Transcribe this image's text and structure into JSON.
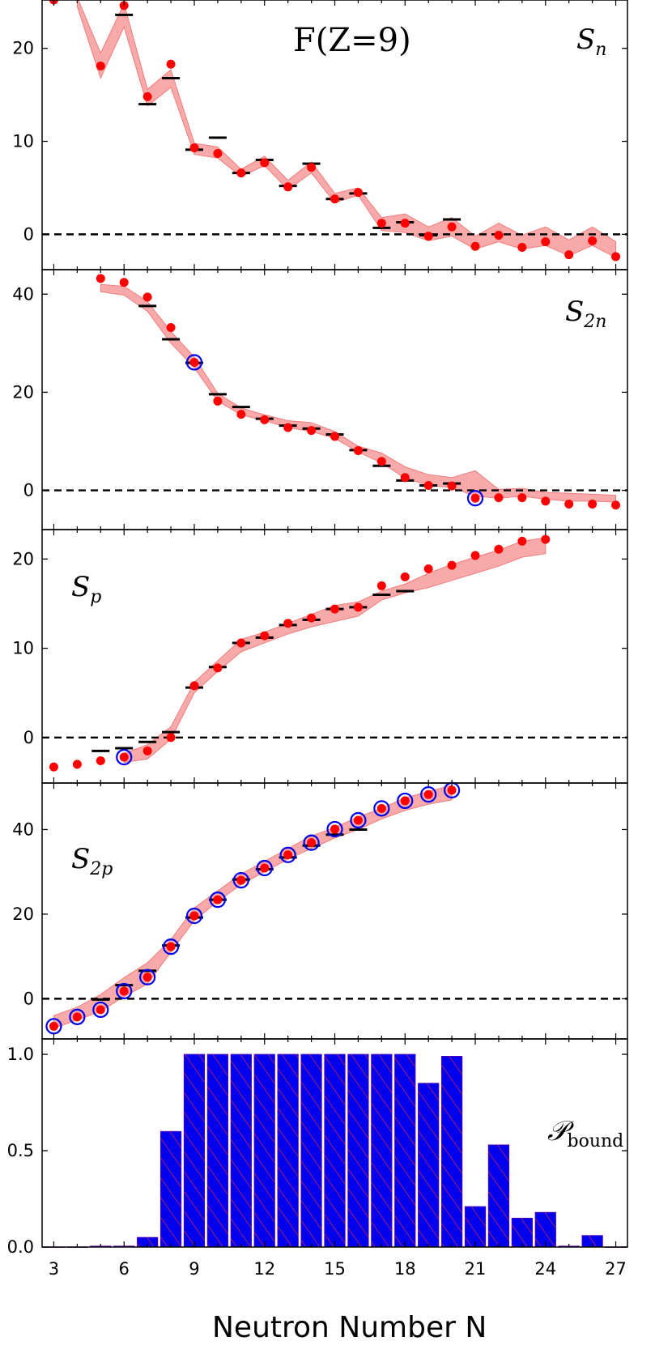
{
  "chart_data": {
    "type": "multi-panel scatter / band / bar",
    "title": "F(Z=9)",
    "xlabel": "Neutron Number N",
    "xlim": [
      2.5,
      27.5
    ],
    "xticks": [
      3,
      6,
      9,
      12,
      15,
      18,
      21,
      24,
      27
    ],
    "panels": [
      {
        "name": "Sn",
        "label": "S_n",
        "ylim": [
          -3.8,
          25.2
        ],
        "yticks": [
          0,
          10,
          20
        ],
        "band": {
          "x": [
            4,
            5,
            6,
            7,
            8,
            9,
            10,
            11,
            12,
            13,
            14,
            15,
            16,
            17,
            18,
            19,
            20,
            21,
            22,
            23,
            24,
            25,
            26,
            27
          ],
          "lo": [
            24.5,
            16.8,
            22.3,
            13.8,
            15.8,
            8.6,
            8.2,
            6.2,
            7.4,
            4.8,
            6.6,
            3.4,
            4.2,
            0.4,
            0.2,
            -0.7,
            -0.2,
            -1.6,
            -0.8,
            -1.6,
            -1.2,
            -2.3,
            -1.2,
            -2.5
          ],
          "hi": [
            25.5,
            19.5,
            24.8,
            15.6,
            17.7,
            9.8,
            9.4,
            7.0,
            8.4,
            5.8,
            7.8,
            4.4,
            5.0,
            1.8,
            2.2,
            0.8,
            1.8,
            -0.2,
            1.2,
            -0.1,
            0.8,
            -0.6,
            0.8,
            -0.8
          ]
        },
        "predicted": {
          "x": [
            3,
            5,
            6,
            7,
            8,
            9,
            10,
            11,
            12,
            13,
            14,
            15,
            16,
            17,
            18,
            19,
            20,
            21,
            22,
            23,
            24,
            25,
            26,
            27
          ],
          "y": [
            25.2,
            18.1,
            24.6,
            14.8,
            18.3,
            9.3,
            8.7,
            6.6,
            7.7,
            5.1,
            7.2,
            3.8,
            4.5,
            1.2,
            1.2,
            -0.2,
            0.8,
            -1.3,
            -0.1,
            -1.4,
            -0.8,
            -2.2,
            -0.7,
            -2.4
          ]
        },
        "experiment": {
          "x": [
            6,
            7,
            8,
            9,
            10,
            11,
            12,
            13,
            14,
            15,
            16,
            17,
            18,
            19,
            20
          ],
          "y": [
            23.6,
            14.0,
            16.8,
            9.1,
            10.4,
            6.6,
            8.0,
            5.2,
            7.6,
            3.8,
            4.4,
            0.7,
            1.3,
            -0.1,
            1.6
          ]
        },
        "circled": {
          "x": [],
          "y": []
        }
      },
      {
        "name": "S2n",
        "label": "S_2n",
        "ylim": [
          -8,
          45
        ],
        "yticks": [
          0,
          20,
          40
        ],
        "band": {
          "x": [
            5,
            6,
            7,
            8,
            9,
            10,
            11,
            12,
            13,
            14,
            15,
            16,
            17,
            18,
            19,
            20,
            21,
            22,
            23,
            24,
            25,
            26,
            27
          ],
          "lo": [
            40.5,
            39.8,
            36.5,
            30.0,
            25.0,
            18.2,
            15.4,
            14.2,
            12.8,
            12.0,
            10.6,
            7.8,
            5.6,
            2.5,
            1.0,
            0.6,
            -1.2,
            -1.6,
            -1.2,
            -1.8,
            -2.2,
            -2.2,
            -2.4
          ],
          "hi": [
            42.0,
            41.6,
            38.5,
            32.4,
            27.2,
            19.8,
            16.8,
            15.4,
            14.2,
            13.8,
            12.0,
            9.0,
            7.6,
            4.8,
            3.2,
            2.6,
            4.0,
            0.2,
            0.4,
            -0.4,
            -0.6,
            -0.8,
            -1.0
          ]
        },
        "predicted": {
          "x": [
            5,
            6,
            7,
            8,
            9,
            10,
            11,
            12,
            13,
            14,
            15,
            16,
            17,
            18,
            19,
            20,
            21,
            22,
            23,
            24,
            25,
            26,
            27
          ],
          "y": [
            43.2,
            42.4,
            39.4,
            33.2,
            26.1,
            18.2,
            15.5,
            14.4,
            12.8,
            12.2,
            11.0,
            8.1,
            5.9,
            2.6,
            1.0,
            0.9,
            -1.6,
            -1.5,
            -1.5,
            -2.2,
            -2.8,
            -2.8,
            -3.0
          ]
        },
        "experiment": {
          "x": [
            7,
            8,
            9,
            10,
            11,
            12,
            13,
            14,
            15,
            16,
            17,
            18,
            19,
            20
          ],
          "y": [
            37.6,
            30.8,
            26.0,
            19.6,
            17.0,
            14.6,
            13.2,
            12.6,
            11.4,
            8.2,
            5.0,
            2.0,
            1.0,
            1.4
          ]
        },
        "circled": {
          "x": [
            9,
            21
          ],
          "y": [
            26.1,
            -1.6
          ]
        }
      },
      {
        "name": "Sp",
        "label": "S_p",
        "ylim": [
          -5.1,
          23.3
        ],
        "yticks": [
          0,
          10,
          20
        ],
        "band": {
          "x": [
            6,
            7,
            8,
            9,
            10,
            11,
            12,
            13,
            14,
            15,
            16,
            17,
            18,
            19,
            20,
            21,
            22,
            23,
            24
          ],
          "lo": [
            -2.8,
            -2.4,
            -0.2,
            5.0,
            7.4,
            9.6,
            10.6,
            11.6,
            12.4,
            13.0,
            13.6,
            15.4,
            16.2,
            16.8,
            17.6,
            18.4,
            19.2,
            20.2,
            20.6
          ],
          "hi": [
            -1.8,
            -0.8,
            1.2,
            6.2,
            8.6,
            11.0,
            11.8,
            12.8,
            13.8,
            14.8,
            15.2,
            16.4,
            17.2,
            18.4,
            19.4,
            20.2,
            21.0,
            22.0,
            22.4
          ]
        },
        "predicted": {
          "x": [
            3,
            4,
            5,
            6,
            7,
            8,
            9,
            10,
            11,
            12,
            13,
            14,
            15,
            16,
            17,
            18,
            19,
            20,
            21,
            22,
            23,
            24
          ],
          "y": [
            -3.3,
            -3.0,
            -2.6,
            -2.2,
            -1.5,
            0.0,
            5.8,
            7.8,
            10.6,
            11.4,
            12.8,
            13.4,
            14.4,
            14.6,
            17.0,
            18.0,
            18.9,
            19.3,
            20.4,
            21.1,
            22.0,
            22.2
          ]
        },
        "experiment": {
          "x": [
            5,
            6,
            7,
            8,
            9,
            10,
            11,
            12,
            13,
            14,
            15,
            16,
            17,
            18
          ],
          "y": [
            -1.5,
            -1.2,
            -0.5,
            0.6,
            5.6,
            7.9,
            10.6,
            11.2,
            12.6,
            13.2,
            14.4,
            14.6,
            16.0,
            16.4
          ]
        },
        "circled": {
          "x": [
            6
          ],
          "y": [
            -2.2
          ]
        }
      },
      {
        "name": "S2p",
        "label": "S_2p",
        "ylim": [
          -9.5,
          51
        ],
        "yticks": [
          0,
          20,
          40
        ],
        "band": {
          "x": [
            3,
            4,
            5,
            6,
            7,
            8,
            9,
            10,
            11,
            12,
            13,
            14,
            15,
            16,
            17,
            18,
            19,
            20
          ],
          "lo": [
            -7.0,
            -5.0,
            -3.0,
            0.5,
            3.5,
            11.0,
            18.5,
            23.0,
            27.0,
            30.0,
            33.0,
            35.5,
            38.0,
            40.0,
            42.5,
            44.5,
            46.0,
            47.0
          ],
          "hi": [
            -4.0,
            -2.0,
            1.0,
            5.0,
            8.5,
            14.0,
            21.5,
            25.5,
            29.5,
            32.5,
            35.5,
            38.5,
            40.5,
            43.0,
            45.0,
            47.5,
            49.0,
            50.5
          ]
        },
        "predicted": {
          "x": [
            3,
            4,
            5,
            6,
            7,
            8,
            9,
            10,
            11,
            12,
            13,
            14,
            15,
            16,
            17,
            18,
            19,
            20
          ],
          "y": [
            -6.5,
            -4.3,
            -2.6,
            1.8,
            5.1,
            12.3,
            19.6,
            23.4,
            28.0,
            30.9,
            34.0,
            36.9,
            40.1,
            42.2,
            45.0,
            46.8,
            48.3,
            49.3
          ]
        },
        "experiment": {
          "x": [
            5,
            6,
            7,
            8,
            9,
            10,
            11,
            12,
            13,
            14,
            15,
            16
          ],
          "y": [
            -0.2,
            3.2,
            6.6,
            12.6,
            19.2,
            23.4,
            28.2,
            30.6,
            33.4,
            36.2,
            38.8,
            40.0
          ]
        },
        "circled": {
          "x": [
            3,
            4,
            5,
            6,
            7,
            8,
            9,
            10,
            11,
            12,
            13,
            14,
            15,
            16,
            17,
            18,
            19,
            20
          ],
          "y": [
            -6.5,
            -4.3,
            -2.6,
            1.8,
            5.1,
            12.3,
            19.6,
            23.4,
            28.0,
            30.9,
            34.0,
            36.9,
            40.1,
            42.2,
            45.0,
            46.8,
            48.3,
            49.3
          ]
        }
      },
      {
        "name": "Pbound",
        "label": "P_bound",
        "type": "bar",
        "ylim": [
          0,
          1.08
        ],
        "yticks": [
          0.0,
          0.5,
          1.0
        ],
        "ytick_labels": [
          "0.0",
          "0.5",
          "1.0"
        ],
        "x": [
          3,
          4,
          5,
          6,
          7,
          8,
          9,
          10,
          11,
          12,
          13,
          14,
          15,
          16,
          17,
          18,
          19,
          20,
          21,
          22,
          23,
          24,
          25,
          26,
          27
        ],
        "values": [
          0.0,
          0.0,
          0.005,
          0.005,
          0.05,
          0.6,
          1.0,
          1.0,
          1.0,
          1.0,
          1.0,
          1.0,
          1.0,
          1.0,
          1.0,
          1.0,
          0.85,
          0.99,
          0.21,
          0.53,
          0.15,
          0.18,
          0.005,
          0.06,
          0.0
        ]
      }
    ],
    "colors": {
      "predicted": "#ff0000",
      "band": "#f8a0a0",
      "band_edge": "#f07070",
      "experiment": "#000000",
      "circle": "#0000ee",
      "bar": "#0000ee",
      "bar_hatch": "#ff3030",
      "zero_line": "#000000"
    },
    "tick_labels": {
      "x": [
        "3",
        "6",
        "9",
        "12",
        "15",
        "18",
        "21",
        "24",
        "27"
      ],
      "sn": [
        "0",
        "10",
        "20"
      ],
      "s2n": [
        "0",
        "20",
        "40"
      ],
      "sp": [
        "0",
        "10",
        "20"
      ],
      "s2p": [
        "0",
        "20",
        "40"
      ],
      "pb": [
        "0.0",
        "0.5",
        "1.0"
      ]
    }
  }
}
